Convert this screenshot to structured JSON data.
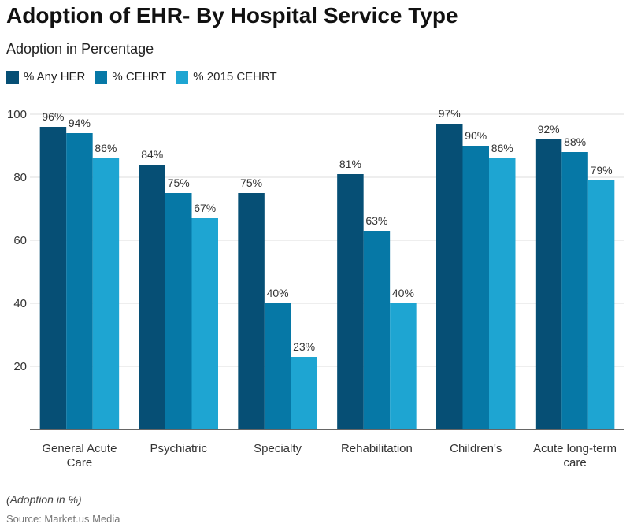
{
  "chart_data": {
    "type": "bar",
    "title": "Adoption of EHR- By Hospital Service Type",
    "subtitle": "Adoption in Percentage",
    "categories": [
      [
        "General Acute",
        "Care"
      ],
      [
        "Psychiatric"
      ],
      [
        "Specialty"
      ],
      [
        "Rehabilitation"
      ],
      [
        "Children's"
      ],
      [
        "Acute long-term",
        "care"
      ]
    ],
    "series": [
      {
        "name": "% Any HER",
        "color": "#064f75",
        "values": [
          96,
          84,
          75,
          81,
          97,
          92
        ]
      },
      {
        "name": "% CEHRT",
        "color": "#0678a6",
        "values": [
          94,
          75,
          40,
          63,
          90,
          88
        ]
      },
      {
        "name": "% 2015 CEHRT",
        "color": "#1ea5d2",
        "values": [
          86,
          67,
          23,
          40,
          86,
          79
        ]
      }
    ],
    "ylim": [
      0,
      100
    ],
    "yticks": [
      20,
      40,
      60,
      80,
      100
    ],
    "value_suffix": "%",
    "grid": true,
    "legend_position": "top-left",
    "xlabel": "",
    "ylabel": ""
  },
  "footer": {
    "note": "(Adoption in %)",
    "source": "Source: Market.us Media"
  }
}
